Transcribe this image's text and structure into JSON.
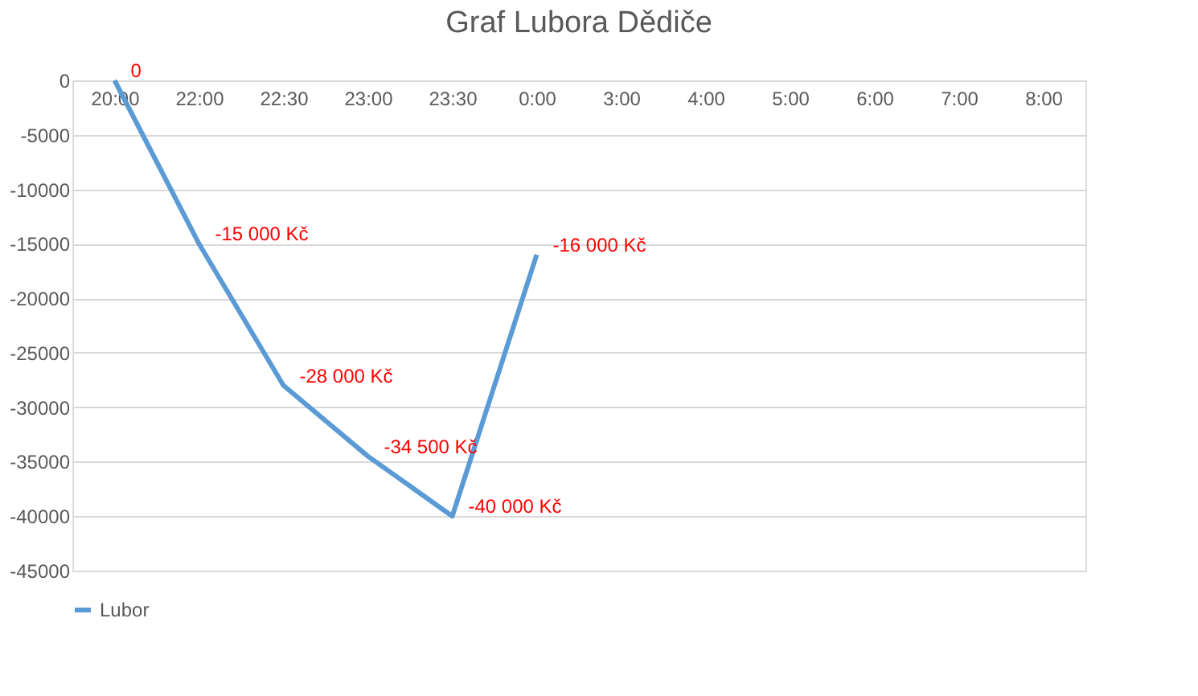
{
  "chart_data": {
    "type": "line",
    "title": "Graf Lubora Dědiče",
    "categories": [
      "20:00",
      "22:00",
      "22:30",
      "23:00",
      "23:30",
      "0:00",
      "3:00",
      "4:00",
      "5:00",
      "6:00",
      "7:00",
      "8:00"
    ],
    "series": [
      {
        "name": "Lubor",
        "color": "#5b9bd5",
        "values": [
          0,
          -15000,
          -28000,
          -34500,
          -40000,
          -16000,
          null,
          null,
          null,
          null,
          null,
          null
        ],
        "value_labels": [
          "0",
          "-15 000 Kč",
          "-28 000 Kč",
          "-34 500 Kč",
          "-40 000 Kč",
          "-16 000 Kč",
          null,
          null,
          null,
          null,
          null,
          null
        ]
      }
    ],
    "ylim": [
      -45000,
      0
    ],
    "yticks": [
      -45000,
      -40000,
      -35000,
      -30000,
      -25000,
      -20000,
      -15000,
      -10000,
      -5000,
      0
    ],
    "grid": "y",
    "legend": "bottom",
    "marker": "none",
    "line_style": "solid"
  }
}
